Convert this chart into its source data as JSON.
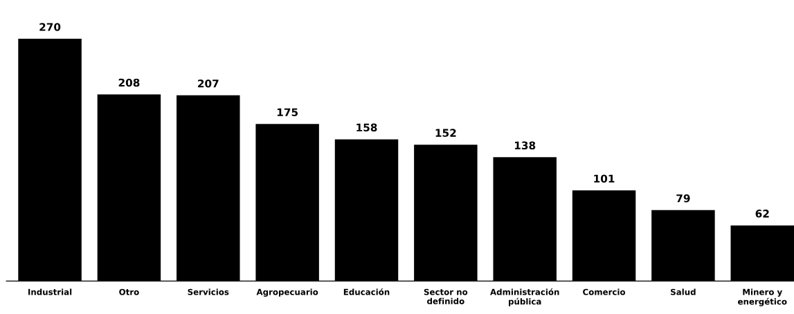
{
  "chart_data": {
    "type": "bar",
    "categories": [
      "Industrial",
      "Otro",
      "Servicios",
      "Agropecuario",
      "Educación",
      "Sector no\ndefinido",
      "Administración\npública",
      "Comercio",
      "Salud",
      "Minero y\nenergético"
    ],
    "values": [
      270,
      208,
      207,
      175,
      158,
      152,
      138,
      101,
      79,
      62
    ],
    "color": "#000000",
    "data_labels": true
  }
}
